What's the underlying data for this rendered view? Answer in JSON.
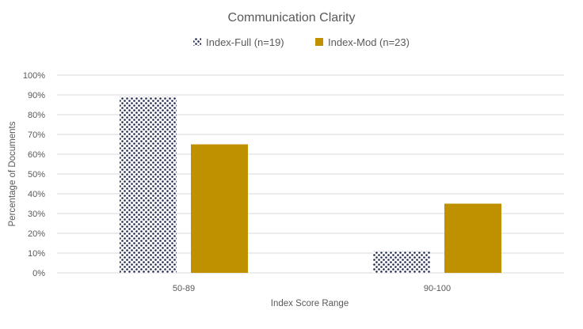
{
  "chart_data": {
    "type": "bar",
    "title": "Communication Clarity",
    "xlabel": "Index Score Range",
    "ylabel": "Percentage of Documents",
    "categories": [
      "50-89",
      "90-100"
    ],
    "series": [
      {
        "name": "Index-Full (n=19)",
        "values": [
          89,
          11
        ],
        "color": "#1f2a4d",
        "pattern": "dotted"
      },
      {
        "name": "Index-Mod (n=23)",
        "values": [
          65,
          35
        ],
        "color": "#bf9000",
        "pattern": "solid"
      }
    ],
    "ylim": [
      0,
      100
    ],
    "yticks": [
      "0%",
      "10%",
      "20%",
      "30%",
      "40%",
      "50%",
      "60%",
      "70%",
      "80%",
      "90%",
      "100%"
    ],
    "grid": true,
    "legend": "top"
  }
}
